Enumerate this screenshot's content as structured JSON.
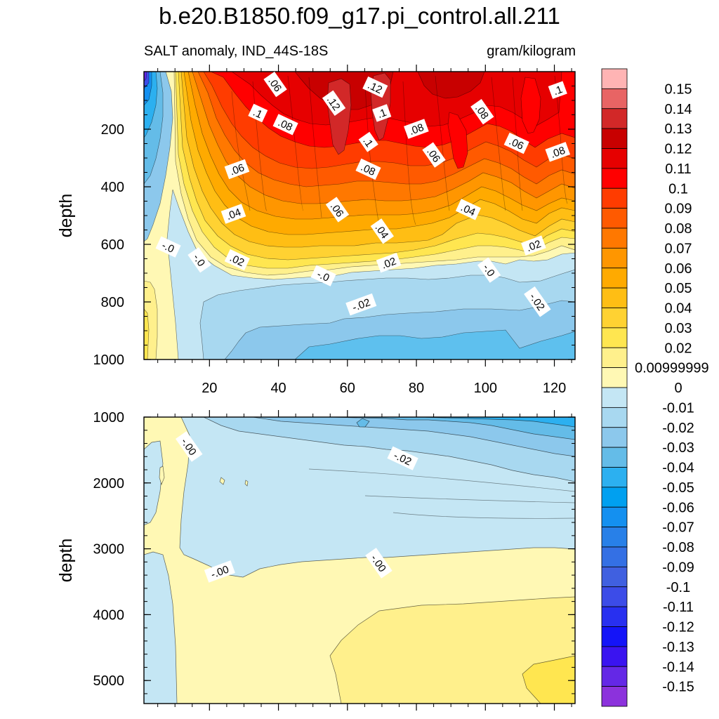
{
  "title": "b.e20.B1850.f09_g17.pi_control.all.211",
  "subtitle_left": "SALT anomaly, IND_44S-18S",
  "subtitle_right": "gram/kilogram",
  "chart_data": [
    {
      "type": "heatmap",
      "panel": "upper",
      "variable": "SALT anomaly",
      "region": "IND_44S-18S",
      "units": "gram/kilogram",
      "ylabel": "depth",
      "xlabel": "",
      "xlim": [
        1,
        126
      ],
      "ylim": [
        1000,
        0
      ],
      "x_ticks": [
        20,
        40,
        60,
        80,
        100,
        120
      ],
      "y_ticks": [
        200,
        400,
        600,
        800,
        1000
      ],
      "contour_labels": [
        {
          "text": ".06",
          "x": 39,
          "y": 45
        },
        {
          "text": ".12",
          "x": 68,
          "y": 55
        },
        {
          "text": ".1",
          "x": 121,
          "y": 65
        },
        {
          "text": ".12",
          "x": 56,
          "y": 110
        },
        {
          "text": ".1",
          "x": 34,
          "y": 145
        },
        {
          "text": ".1",
          "x": 70,
          "y": 145
        },
        {
          "text": ".08",
          "x": 99,
          "y": 140
        },
        {
          "text": ".08",
          "x": 42,
          "y": 185
        },
        {
          "text": ".08",
          "x": 80,
          "y": 200
        },
        {
          "text": ".1",
          "x": 66,
          "y": 245
        },
        {
          "text": ".06",
          "x": 109,
          "y": 250
        },
        {
          "text": ".08",
          "x": 121,
          "y": 280
        },
        {
          "text": ".06",
          "x": 85,
          "y": 290
        },
        {
          "text": ".08",
          "x": 66,
          "y": 340
        },
        {
          "text": ".06",
          "x": 28,
          "y": 340
        },
        {
          "text": ".06",
          "x": 57,
          "y": 480
        },
        {
          "text": ".04",
          "x": 95,
          "y": 480
        },
        {
          "text": ".04",
          "x": 27,
          "y": 495
        },
        {
          "text": ".04",
          "x": 70,
          "y": 555
        },
        {
          "text": "-.0",
          "x": 8,
          "y": 610
        },
        {
          "text": ".02",
          "x": 114,
          "y": 605
        },
        {
          "text": "-.0",
          "x": 17,
          "y": 655
        },
        {
          "text": ".02",
          "x": 28,
          "y": 655
        },
        {
          "text": ".02",
          "x": 72,
          "y": 665
        },
        {
          "text": "-.0",
          "x": 101,
          "y": 690
        },
        {
          "text": "-.0",
          "x": 53,
          "y": 710
        },
        {
          "text": "-.02",
          "x": 64,
          "y": 810
        },
        {
          "text": "-.02",
          "x": 115,
          "y": 800
        }
      ]
    },
    {
      "type": "heatmap",
      "panel": "lower",
      "variable": "SALT anomaly",
      "region": "IND_44S-18S",
      "units": "gram/kilogram",
      "ylabel": "depth",
      "xlabel": "",
      "xlim": [
        1,
        126
      ],
      "ylim": [
        5350,
        1000
      ],
      "y_ticks": [
        1000,
        2000,
        3000,
        4000,
        5000
      ],
      "contour_labels": [
        {
          "text": "-.00",
          "x": 14,
          "y": 1450
        },
        {
          "text": "-.02",
          "x": 76,
          "y": 1630
        },
        {
          "text": "-.00",
          "x": 23,
          "y": 3350
        },
        {
          "text": "-.00",
          "x": 69,
          "y": 3220
        }
      ]
    }
  ],
  "colorbar": {
    "labels": [
      "0.15",
      "0.14",
      "0.13",
      "0.12",
      "0.11",
      "0.1",
      "0.09",
      "0.08",
      "0.07",
      "0.06",
      "0.05",
      "0.04",
      "0.03",
      "0.02",
      "0.00999999",
      "0",
      "-0.01",
      "-0.02",
      "-0.03",
      "-0.04",
      "-0.05",
      "-0.06",
      "-0.07",
      "-0.08",
      "-0.09",
      "-0.1",
      "-0.11",
      "-0.12",
      "-0.13",
      "-0.14",
      "-0.15"
    ],
    "colors": [
      "#ffb4b4",
      "#e86464",
      "#d22828",
      "#c80000",
      "#e60000",
      "#ff0000",
      "#ff3c00",
      "#ff5a00",
      "#ff7800",
      "#ff9600",
      "#ffaa00",
      "#ffbe14",
      "#ffd232",
      "#ffe650",
      "#fff08c",
      "#fff8b4",
      "#c4e6f4",
      "#a8d8f0",
      "#8cc8ec",
      "#64bce8",
      "#2cb0f0",
      "#00a0f0",
      "#1490f0",
      "#2880e8",
      "#3470e4",
      "#4060e0",
      "#3c4ce8",
      "#2830f0",
      "#1414f8",
      "#3a14f0",
      "#6428e6",
      "#8c32dc"
    ]
  }
}
